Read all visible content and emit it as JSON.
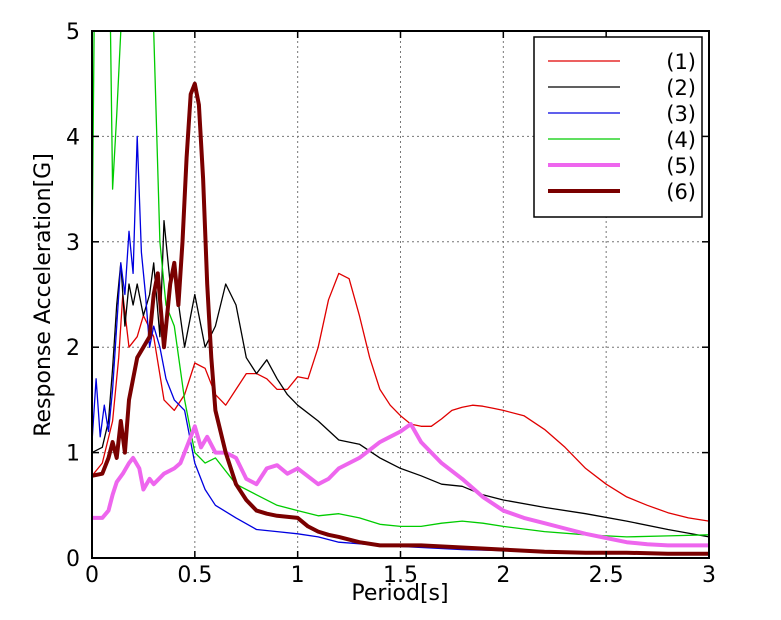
{
  "chart_data": {
    "type": "line",
    "title": "",
    "xlabel": "Period[s]",
    "ylabel": "Response Acceleration[G]",
    "xlim": [
      0,
      3
    ],
    "ylim": [
      0,
      5
    ],
    "xticks": [
      0,
      0.5,
      1,
      1.5,
      2,
      2.5,
      3
    ],
    "xtick_labels": [
      "0",
      "0.5",
      "1",
      "1.5",
      "2",
      "2.5",
      "3"
    ],
    "yticks": [
      0,
      1,
      2,
      3,
      4,
      5
    ],
    "ytick_labels": [
      "0",
      "1",
      "2",
      "3",
      "4",
      "5"
    ],
    "grid": true,
    "legend_position": "top-right",
    "series": [
      {
        "name": "(1)",
        "color": "#e00000",
        "line_width": 1.3,
        "x": [
          0.0,
          0.05,
          0.1,
          0.13,
          0.15,
          0.18,
          0.22,
          0.25,
          0.3,
          0.35,
          0.4,
          0.45,
          0.5,
          0.55,
          0.6,
          0.65,
          0.7,
          0.75,
          0.8,
          0.85,
          0.9,
          0.95,
          1.0,
          1.05,
          1.1,
          1.15,
          1.2,
          1.25,
          1.3,
          1.35,
          1.4,
          1.45,
          1.5,
          1.55,
          1.6,
          1.65,
          1.7,
          1.75,
          1.8,
          1.85,
          1.9,
          1.95,
          2.0,
          2.1,
          2.2,
          2.3,
          2.4,
          2.5,
          2.6,
          2.7,
          2.8,
          2.9,
          3.0
        ],
        "y": [
          0.78,
          0.9,
          1.3,
          1.9,
          2.5,
          2.0,
          2.1,
          2.3,
          2.1,
          1.5,
          1.4,
          1.55,
          1.85,
          1.8,
          1.55,
          1.45,
          1.6,
          1.75,
          1.75,
          1.7,
          1.6,
          1.6,
          1.72,
          1.7,
          2.0,
          2.45,
          2.7,
          2.65,
          2.3,
          1.9,
          1.6,
          1.45,
          1.35,
          1.27,
          1.25,
          1.25,
          1.32,
          1.4,
          1.43,
          1.45,
          1.44,
          1.42,
          1.4,
          1.35,
          1.22,
          1.05,
          0.85,
          0.7,
          0.58,
          0.5,
          0.43,
          0.38,
          0.35
        ]
      },
      {
        "name": "(2)",
        "color": "#000000",
        "line_width": 1.3,
        "x": [
          0.0,
          0.05,
          0.08,
          0.1,
          0.12,
          0.14,
          0.16,
          0.18,
          0.2,
          0.22,
          0.25,
          0.28,
          0.3,
          0.33,
          0.35,
          0.38,
          0.4,
          0.45,
          0.5,
          0.55,
          0.6,
          0.65,
          0.7,
          0.75,
          0.8,
          0.85,
          0.9,
          0.95,
          1.0,
          1.1,
          1.2,
          1.3,
          1.4,
          1.5,
          1.6,
          1.7,
          1.8,
          1.9,
          2.0,
          2.2,
          2.4,
          2.6,
          2.8,
          3.0
        ],
        "y": [
          1.0,
          1.05,
          1.3,
          1.8,
          2.4,
          2.8,
          2.2,
          2.6,
          2.4,
          2.6,
          2.3,
          2.5,
          2.8,
          2.1,
          3.2,
          2.6,
          2.7,
          2.0,
          2.5,
          2.0,
          2.2,
          2.6,
          2.4,
          1.9,
          1.75,
          1.88,
          1.7,
          1.55,
          1.45,
          1.3,
          1.12,
          1.08,
          0.95,
          0.85,
          0.78,
          0.7,
          0.68,
          0.6,
          0.55,
          0.48,
          0.42,
          0.35,
          0.27,
          0.2
        ]
      },
      {
        "name": "(3)",
        "color": "#0000e0",
        "line_width": 1.3,
        "x": [
          0.0,
          0.02,
          0.04,
          0.06,
          0.08,
          0.1,
          0.12,
          0.14,
          0.16,
          0.18,
          0.2,
          0.22,
          0.24,
          0.26,
          0.28,
          0.3,
          0.33,
          0.36,
          0.4,
          0.45,
          0.5,
          0.55,
          0.6,
          0.7,
          0.8,
          0.9,
          1.0,
          1.1,
          1.2,
          1.4,
          1.6,
          1.8,
          2.0,
          2.5,
          3.0
        ],
        "y": [
          1.1,
          1.7,
          1.15,
          1.45,
          1.2,
          1.6,
          2.2,
          2.8,
          2.5,
          3.1,
          2.7,
          4.0,
          2.9,
          2.5,
          2.0,
          2.2,
          2.0,
          1.7,
          1.5,
          1.4,
          0.9,
          0.65,
          0.5,
          0.38,
          0.27,
          0.25,
          0.23,
          0.2,
          0.15,
          0.12,
          0.1,
          0.08,
          0.07,
          0.05,
          0.04
        ]
      },
      {
        "name": "(4)",
        "color": "#00cc00",
        "line_width": 1.3,
        "x": [
          0.0,
          0.01,
          0.02,
          0.03,
          0.05,
          0.07,
          0.09,
          0.1,
          0.12,
          0.14,
          0.17,
          0.2,
          0.23,
          0.26,
          0.3,
          0.33,
          0.36,
          0.4,
          0.45,
          0.5,
          0.55,
          0.6,
          0.7,
          0.8,
          0.9,
          1.0,
          1.1,
          1.2,
          1.3,
          1.4,
          1.5,
          1.6,
          1.7,
          1.8,
          1.9,
          2.0,
          2.2,
          2.4,
          2.6,
          2.8,
          3.0
        ],
        "y": [
          2.8,
          5.0,
          5.0,
          5.0,
          5.0,
          5.0,
          5.0,
          3.5,
          4.2,
          5.0,
          5.0,
          5.0,
          5.0,
          5.0,
          5.0,
          3.0,
          2.4,
          2.2,
          1.5,
          1.0,
          0.9,
          0.95,
          0.7,
          0.6,
          0.5,
          0.45,
          0.4,
          0.42,
          0.38,
          0.32,
          0.3,
          0.3,
          0.33,
          0.35,
          0.33,
          0.3,
          0.25,
          0.22,
          0.2,
          0.21,
          0.22
        ]
      },
      {
        "name": "(5)",
        "color": "#ee66ee",
        "line_width": 4,
        "x": [
          0.0,
          0.05,
          0.08,
          0.1,
          0.12,
          0.15,
          0.18,
          0.2,
          0.23,
          0.25,
          0.28,
          0.3,
          0.35,
          0.4,
          0.43,
          0.47,
          0.5,
          0.53,
          0.56,
          0.6,
          0.65,
          0.7,
          0.75,
          0.8,
          0.85,
          0.9,
          0.95,
          1.0,
          1.1,
          1.15,
          1.2,
          1.3,
          1.4,
          1.5,
          1.55,
          1.6,
          1.7,
          1.8,
          1.9,
          2.0,
          2.1,
          2.2,
          2.3,
          2.4,
          2.5,
          2.6,
          2.7,
          2.8,
          2.9,
          3.0
        ],
        "y": [
          0.38,
          0.38,
          0.45,
          0.6,
          0.72,
          0.8,
          0.9,
          0.95,
          0.85,
          0.65,
          0.75,
          0.7,
          0.8,
          0.85,
          0.9,
          1.1,
          1.25,
          1.05,
          1.15,
          1.0,
          1.0,
          0.95,
          0.75,
          0.7,
          0.85,
          0.88,
          0.8,
          0.85,
          0.7,
          0.75,
          0.85,
          0.95,
          1.1,
          1.2,
          1.27,
          1.1,
          0.9,
          0.75,
          0.58,
          0.45,
          0.38,
          0.33,
          0.28,
          0.23,
          0.19,
          0.15,
          0.13,
          0.12,
          0.12,
          0.12
        ]
      },
      {
        "name": "(6)",
        "color": "#7a0000",
        "line_width": 4,
        "x": [
          0.0,
          0.05,
          0.08,
          0.1,
          0.12,
          0.14,
          0.16,
          0.18,
          0.2,
          0.22,
          0.25,
          0.28,
          0.3,
          0.32,
          0.35,
          0.38,
          0.4,
          0.42,
          0.44,
          0.46,
          0.48,
          0.5,
          0.52,
          0.54,
          0.56,
          0.58,
          0.6,
          0.65,
          0.7,
          0.75,
          0.8,
          0.85,
          0.9,
          1.0,
          1.05,
          1.1,
          1.15,
          1.2,
          1.3,
          1.4,
          1.6,
          1.8,
          2.0,
          2.2,
          2.4,
          2.6,
          2.8,
          3.0
        ],
        "y": [
          0.78,
          0.8,
          0.95,
          1.1,
          0.95,
          1.3,
          1.0,
          1.5,
          1.7,
          1.9,
          2.0,
          2.1,
          2.5,
          2.7,
          2.0,
          2.6,
          2.8,
          2.4,
          3.0,
          3.8,
          4.4,
          4.5,
          4.3,
          3.6,
          2.6,
          1.9,
          1.4,
          1.0,
          0.7,
          0.55,
          0.45,
          0.42,
          0.4,
          0.38,
          0.3,
          0.25,
          0.22,
          0.2,
          0.15,
          0.12,
          0.12,
          0.1,
          0.08,
          0.06,
          0.05,
          0.05,
          0.04,
          0.04
        ]
      }
    ]
  }
}
